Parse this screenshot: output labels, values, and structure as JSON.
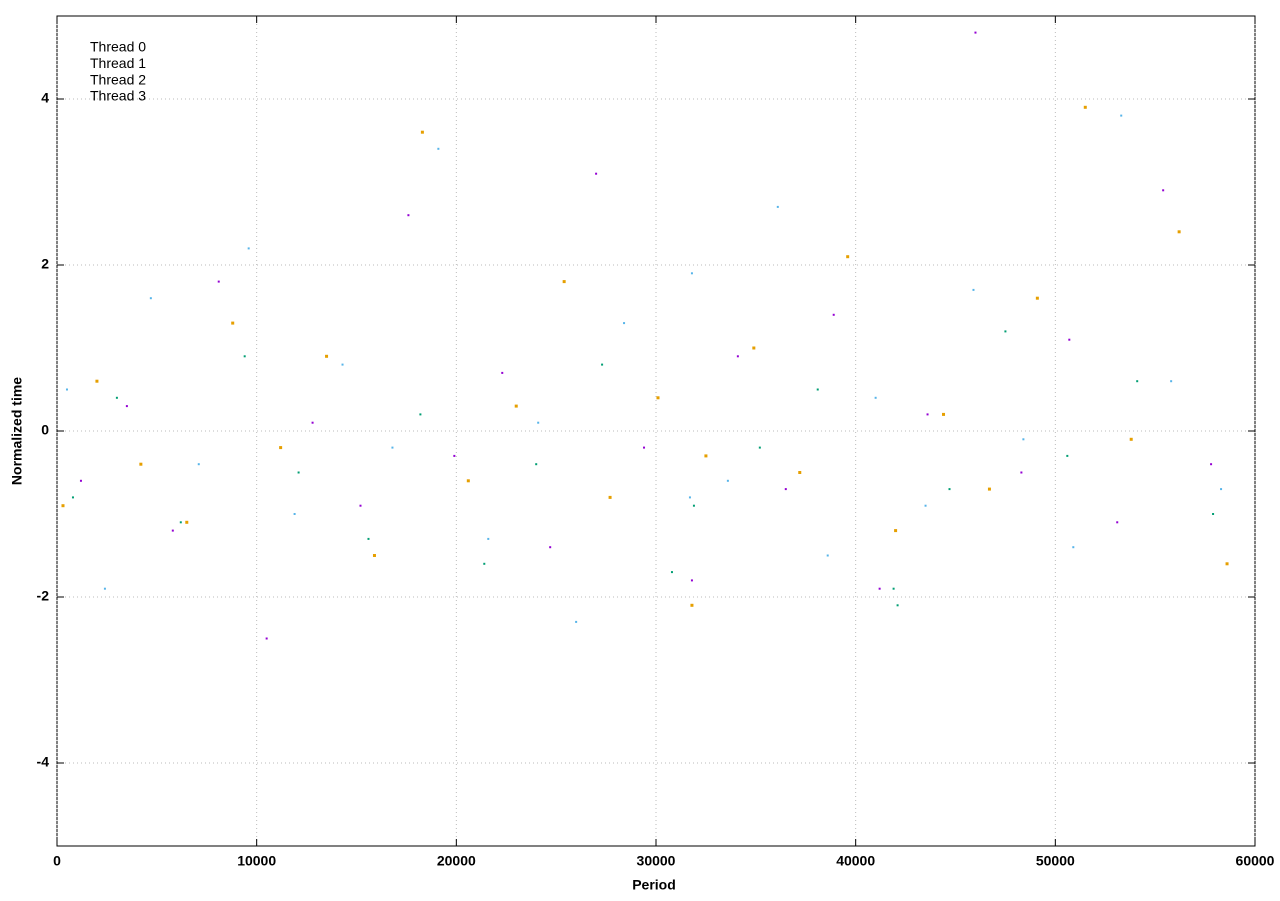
{
  "chart_data": {
    "type": "scatter",
    "xlabel": "Period",
    "ylabel": "Normalized time",
    "xlim": [
      0,
      60000
    ],
    "ylim": [
      -5,
      5
    ],
    "xticks": [
      0,
      10000,
      20000,
      30000,
      40000,
      50000,
      60000
    ],
    "yticks": [
      -4,
      -2,
      0,
      2,
      4
    ],
    "grid": true,
    "legend": "upper-left",
    "series": [
      {
        "name": "Thread 0",
        "color": "#9400d3",
        "x": [
          1200,
          3500,
          5800,
          8100,
          10500,
          12800,
          15200,
          17600,
          19900,
          22300,
          24700,
          27000,
          29400,
          31800,
          34100,
          36500,
          38900,
          41200,
          43600,
          46000,
          48300,
          50700,
          53100,
          55400,
          57800
        ],
        "values": [
          -0.6,
          0.3,
          -1.2,
          1.8,
          -2.5,
          0.1,
          -0.9,
          2.6,
          -0.3,
          0.7,
          -1.4,
          3.1,
          -0.2,
          -1.8,
          0.9,
          -0.7,
          1.4,
          -1.9,
          0.2,
          4.8,
          -0.5,
          1.1,
          -1.1,
          2.9,
          -0.4
        ]
      },
      {
        "name": "Thread 1",
        "color": "#009e73",
        "x": [
          800,
          3000,
          6200,
          9400,
          12100,
          15600,
          18200,
          21400,
          24000,
          27300,
          30800,
          31900,
          35200,
          38100,
          41900,
          42100,
          44700,
          47500,
          50600,
          54100,
          57900
        ],
        "values": [
          -0.8,
          0.4,
          -1.1,
          0.9,
          -0.5,
          -1.3,
          0.2,
          -1.6,
          -0.4,
          0.8,
          -1.7,
          -0.9,
          -0.2,
          0.5,
          -1.9,
          -2.1,
          -0.7,
          1.2,
          -0.3,
          0.6,
          -1.0
        ]
      },
      {
        "name": "Thread 2",
        "color": "#56b4e9",
        "x": [
          500,
          2400,
          4700,
          7100,
          9600,
          11900,
          14300,
          16800,
          19100,
          21600,
          24100,
          26000,
          28400,
          31700,
          31800,
          33600,
          36100,
          38600,
          41000,
          43500,
          45900,
          48400,
          50900,
          53300,
          55800,
          58300
        ],
        "values": [
          0.5,
          -1.9,
          1.6,
          -0.4,
          2.2,
          -1.0,
          0.8,
          -0.2,
          3.4,
          -1.3,
          0.1,
          -2.3,
          1.3,
          -0.8,
          1.9,
          -0.6,
          2.7,
          -1.5,
          0.4,
          -0.9,
          1.7,
          -0.1,
          -1.4,
          3.8,
          0.6,
          -0.7
        ]
      },
      {
        "name": "Thread 3",
        "color": "#e69f00",
        "x": [
          300,
          2000,
          4200,
          6500,
          8800,
          11200,
          13500,
          15900,
          18300,
          20600,
          23000,
          25400,
          27700,
          30100,
          31800,
          32500,
          34900,
          37200,
          39600,
          42000,
          44400,
          46700,
          49100,
          51500,
          53800,
          56200,
          58600
        ],
        "values": [
          -0.9,
          0.6,
          -0.4,
          -1.1,
          1.3,
          -0.2,
          0.9,
          -1.5,
          3.6,
          -0.6,
          0.3,
          1.8,
          -0.8,
          0.4,
          -2.1,
          -0.3,
          1.0,
          -0.5,
          2.1,
          -1.2,
          0.2,
          -0.7,
          1.6,
          3.9,
          -0.1,
          2.4,
          -1.6
        ]
      }
    ]
  }
}
